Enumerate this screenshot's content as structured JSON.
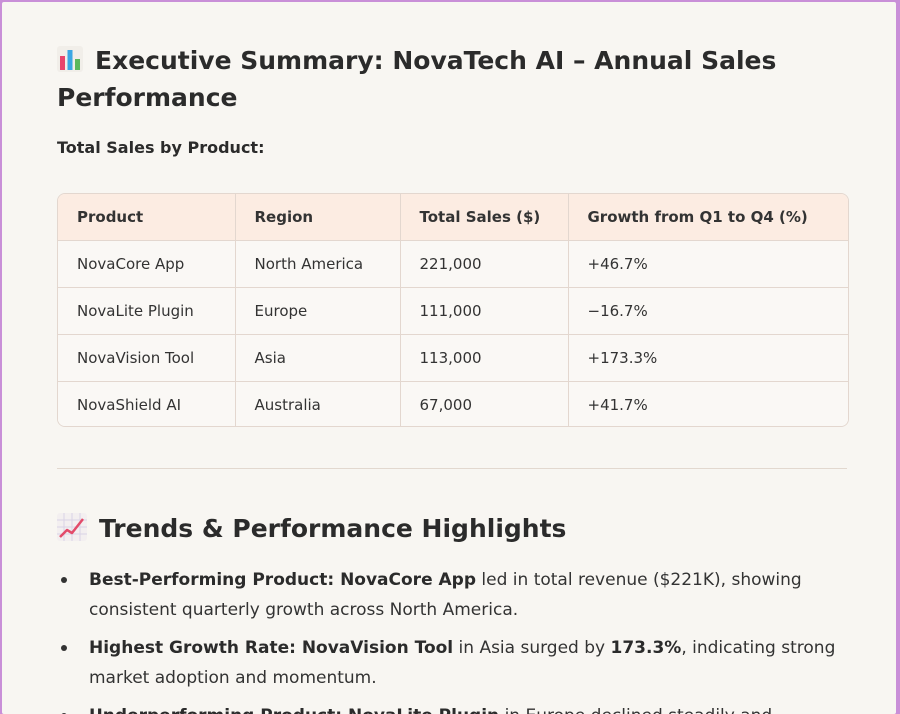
{
  "title": "Executive Summary: NovaTech AI – Annual Sales Performance",
  "table_heading": "Total Sales by Product:",
  "table": {
    "headers": [
      "Product",
      "Region",
      "Total Sales ($)",
      "Growth from Q1 to Q4 (%)"
    ],
    "rows": [
      [
        "NovaCore App",
        "North America",
        "221,000",
        "+46.7%"
      ],
      [
        "NovaLite Plugin",
        "Europe",
        "111,000",
        "−16.7%"
      ],
      [
        "NovaVision Tool",
        "Asia",
        "113,000",
        "+173.3%"
      ],
      [
        "NovaShield AI",
        "Australia",
        "67,000",
        "+41.7%"
      ]
    ]
  },
  "trends_heading": "Trends & Performance Highlights",
  "bullets": [
    {
      "lead": "Best-Performing Product: NovaCore App",
      "text": " led in total revenue ($221K), showing consistent quarterly growth across North America."
    },
    {
      "lead": "Highest Growth Rate: NovaVision Tool",
      "text_before": " in Asia surged by ",
      "emphasis": "173.3%",
      "text_after": ", indicating strong market adoption and momentum."
    },
    {
      "lead": "Underperforming Product: NovaLite Plugin",
      "text": " in Europe declined steadily and"
    }
  ],
  "icons": {
    "title_icon": "bar-chart-icon",
    "trends_icon": "chart-increasing-icon"
  }
}
